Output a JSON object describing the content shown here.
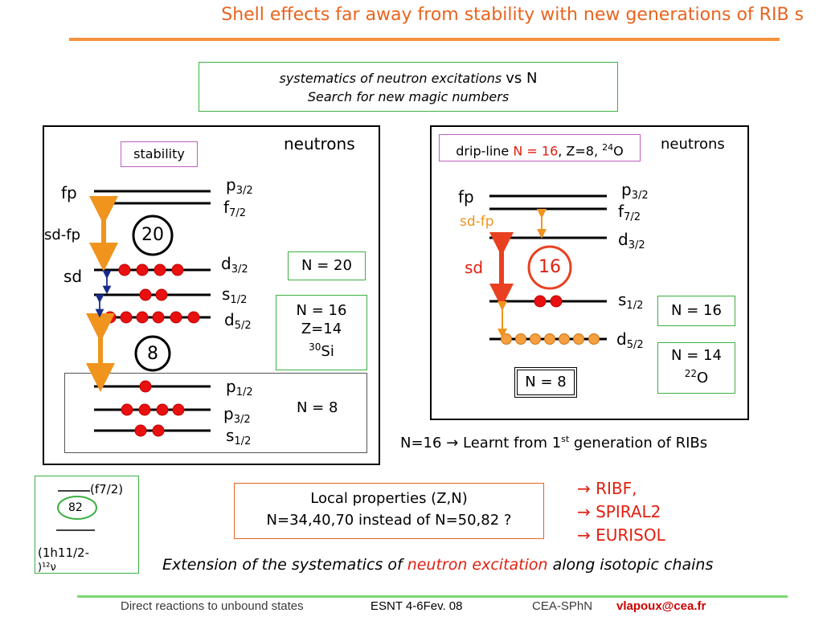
{
  "title": "Shell effects far away from stability with new generations of RIB s",
  "subtitle": {
    "line1_italic": "systematics of neutron excitations",
    "line1_vs": "vs N",
    "line2": "Search for new magic numbers"
  },
  "left_panel": {
    "header": "neutrons",
    "stability": "stability",
    "shell_fp": "fp",
    "shell_sdfp": "sd-fp",
    "shell_sd": "sd",
    "magic_20": "20",
    "magic_8": "8",
    "levels": {
      "p32": {
        "orb": "p",
        "j": "3/2"
      },
      "f72": {
        "orb": "f",
        "j": "7/2"
      },
      "d32": {
        "orb": "d",
        "j": "3/2"
      },
      "s12": {
        "orb": "s",
        "j": "1/2"
      },
      "d52": {
        "orb": "d",
        "j": "5/2"
      },
      "p12": {
        "orb": "p",
        "j": "1/2"
      },
      "p32b": {
        "orb": "p",
        "j": "3/2"
      },
      "s12b": {
        "orb": "s",
        "j": "1/2"
      }
    },
    "n20": "N = 20",
    "n16": "N = 16",
    "z14": "Z=14",
    "si_mass": "30",
    "si_sym": "Si",
    "n8": "N = 8"
  },
  "right_panel": {
    "header": "neutrons",
    "dripline_text": "drip-line",
    "dripline_n": "N = 16",
    "dripline_z": ", Z=8, ",
    "o_mass": "24",
    "o_sym": "O",
    "shell_fp": "fp",
    "shell_sdfp": "sd-fp",
    "shell_sd": "sd",
    "magic_16": "16",
    "levels": {
      "p32": {
        "orb": "p",
        "j": "3/2"
      },
      "f72": {
        "orb": "f",
        "j": "7/2"
      },
      "d32": {
        "orb": "d",
        "j": "3/2"
      },
      "s12": {
        "orb": "s",
        "j": "1/2"
      },
      "d52": {
        "orb": "d",
        "j": "5/2"
      }
    },
    "n16": "N = 16",
    "n14": "N = 14",
    "o22_mass": "22",
    "o22_sym": "O",
    "n8": "N = 8"
  },
  "learnt": {
    "pre": "N=16 ",
    "arrow": "→",
    "mid": " Learnt from 1",
    "sup": "st",
    "post": " generation of RIBs"
  },
  "local_box": {
    "line1": "Local properties (Z,N)",
    "line2": "N=34,40,70  instead of N=50,82 ?"
  },
  "facilities": [
    "→ RIBF,",
    "→ SPIRAL2",
    "→ EURISOL"
  ],
  "extension": {
    "pre": "Extension of the systematics of ",
    "highlight": "neutron excitation",
    "post": " along isotopic chains"
  },
  "ni_box": {
    "f72": "(f7/2)",
    "magic_82": "82",
    "h112": "(1h11/2-",
    "tail": ")¹²ν"
  },
  "footer": {
    "topic": "Direct reactions to unbound states",
    "event": "ESNT 4-6Fev. 08",
    "lab": "CEA-SPhN",
    "email": "vlapoux@cea.fr"
  },
  "colors": {
    "title": "#e8641e",
    "accent_orange": "#f0941e",
    "red": "#e02010",
    "green_box": "#3cb043",
    "purple_box": "#c060c0",
    "footer_email": "#cc0000"
  }
}
